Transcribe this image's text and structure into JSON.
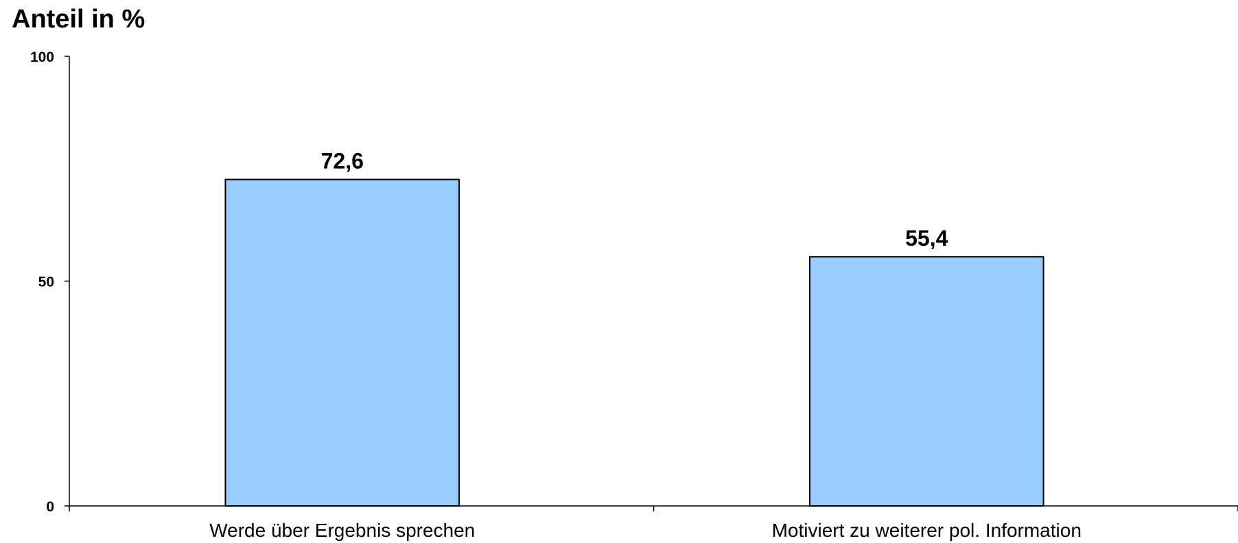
{
  "chart_data": {
    "type": "bar",
    "title": "",
    "ylabel": "Anteil in %",
    "xlabel": "",
    "categories": [
      "Werde über Ergebnis sprechen",
      "Motiviert zu weiterer pol. Information"
    ],
    "values": [
      72.6,
      55.4
    ],
    "value_labels": [
      "72,6",
      "55,4"
    ],
    "ylim": [
      0,
      100
    ],
    "yticks": [
      0,
      50,
      100
    ],
    "ytick_labels": [
      "0",
      "50",
      "100"
    ],
    "grid": false,
    "legend": "none",
    "colors": {
      "bar_fill": "#99CCFF",
      "bar_stroke": "#000000",
      "axis": "#000000",
      "text": "#000000",
      "background": "#FFFFFF"
    }
  }
}
